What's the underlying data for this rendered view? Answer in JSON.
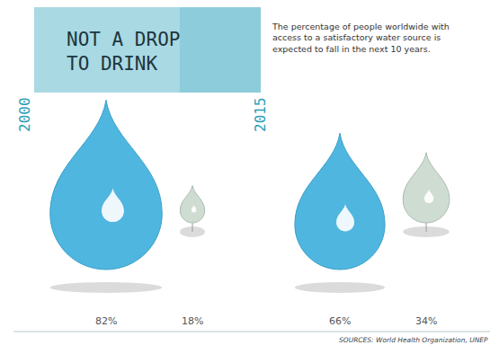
{
  "chart_data": {
    "type": "drops",
    "title": "NOT A DROP TO DRINK",
    "subtitle": "The percentage of people worldwide with access to a satisfactory water source is expected to fall in the next 10 years.",
    "categories": [
      "2000",
      "2015"
    ],
    "series": [
      {
        "color": "#4fb6df",
        "values": [
          82,
          66
        ],
        "value_labels": [
          "82%",
          "66%"
        ]
      },
      {
        "color": "#cfdcd2",
        "values": [
          18,
          34
        ],
        "value_labels": [
          "18%",
          "34%"
        ]
      }
    ],
    "data_labels": true,
    "annotations": [
      "SOURCES: World Health Organization, UNEP"
    ]
  }
}
